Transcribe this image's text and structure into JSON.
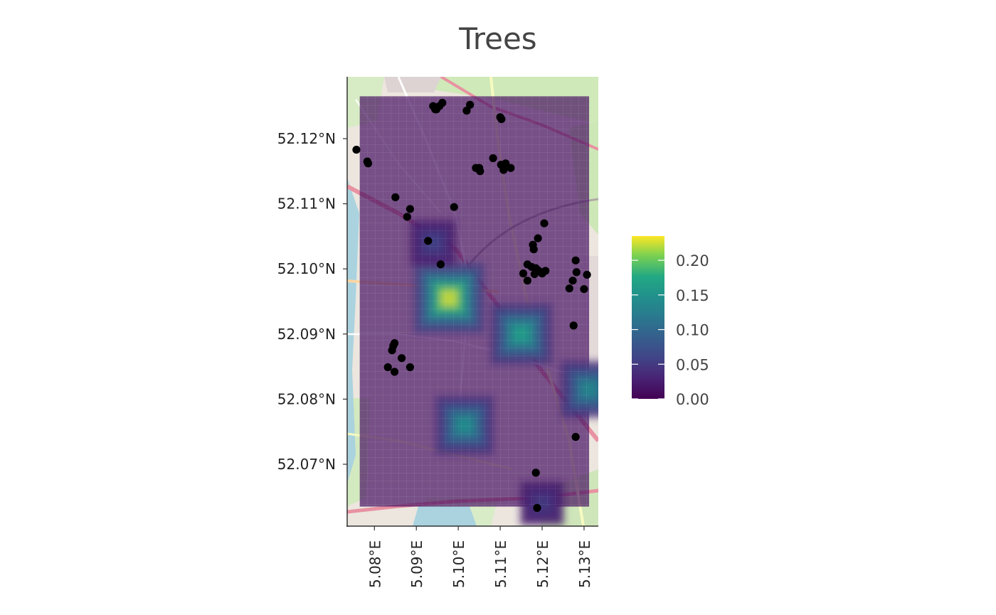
{
  "title": "Trees",
  "map": {
    "lon_range": [
      5.0735,
      5.1334
    ],
    "lat_range": [
      52.0605,
      52.1295
    ],
    "grid_extent": {
      "lon": [
        5.0765,
        5.1312
      ],
      "lat": [
        52.0635,
        52.1265
      ]
    },
    "grid_opacity": 0.7,
    "x_ticks": [
      5.08,
      5.09,
      5.1,
      5.11,
      5.12,
      5.13
    ],
    "x_tick_labels": [
      "5.08°E",
      "5.09°E",
      "5.10°E",
      "5.11°E",
      "5.12°E",
      "5.13°E"
    ],
    "y_ticks": [
      52.12,
      52.11,
      52.1,
      52.09,
      52.08,
      52.07
    ],
    "y_tick_labels": [
      "52.12°N",
      "52.11°N",
      "52.10°N",
      "52.09°N",
      "52.08°N",
      "52.07°N"
    ]
  },
  "legend": {
    "colormap": "viridis",
    "range": [
      0.0,
      0.235
    ],
    "ticks": [
      0.2,
      0.15,
      0.1,
      0.05,
      0.0
    ],
    "tick_labels": [
      "0.20",
      "0.15",
      "0.10",
      "0.05",
      "0.00"
    ]
  },
  "chart_data": {
    "type": "heatmap",
    "title": "Trees",
    "xlabel": "",
    "ylabel": "",
    "fill_range": [
      0.0,
      0.235
    ],
    "hotspots": [
      {
        "lon": 5.0978,
        "lat": 52.0955,
        "value": 0.23
      },
      {
        "lon": 5.115,
        "lat": 52.09,
        "value": 0.17
      },
      {
        "lon": 5.1015,
        "lat": 52.076,
        "value": 0.15
      },
      {
        "lon": 5.1312,
        "lat": 52.0815,
        "value": 0.14
      },
      {
        "lon": 5.094,
        "lat": 52.104,
        "value": 0.06
      },
      {
        "lon": 5.12,
        "lat": 52.064,
        "value": 0.05
      }
    ],
    "points": [
      {
        "lon": 5.0962,
        "lat": 52.1255
      },
      {
        "lon": 5.0955,
        "lat": 52.125
      },
      {
        "lon": 5.095,
        "lat": 52.1248
      },
      {
        "lon": 5.0945,
        "lat": 52.1245
      },
      {
        "lon": 5.094,
        "lat": 52.125
      },
      {
        "lon": 5.0948,
        "lat": 52.1245
      },
      {
        "lon": 5.1028,
        "lat": 52.1252
      },
      {
        "lon": 5.102,
        "lat": 52.1243
      },
      {
        "lon": 5.11,
        "lat": 52.1233
      },
      {
        "lon": 5.1103,
        "lat": 52.123
      },
      {
        "lon": 5.0757,
        "lat": 52.1183
      },
      {
        "lon": 5.0783,
        "lat": 52.1165
      },
      {
        "lon": 5.0785,
        "lat": 52.1162
      },
      {
        "lon": 5.1083,
        "lat": 52.117
      },
      {
        "lon": 5.105,
        "lat": 52.1155
      },
      {
        "lon": 5.1042,
        "lat": 52.1155
      },
      {
        "lon": 5.1052,
        "lat": 52.115
      },
      {
        "lon": 5.1102,
        "lat": 52.116
      },
      {
        "lon": 5.1113,
        "lat": 52.1162
      },
      {
        "lon": 5.1108,
        "lat": 52.1152
      },
      {
        "lon": 5.1125,
        "lat": 52.1155
      },
      {
        "lon": 5.085,
        "lat": 52.111
      },
      {
        "lon": 5.0885,
        "lat": 52.1092
      },
      {
        "lon": 5.0878,
        "lat": 52.108
      },
      {
        "lon": 5.099,
        "lat": 52.1095
      },
      {
        "lon": 5.1205,
        "lat": 52.107
      },
      {
        "lon": 5.119,
        "lat": 52.1047
      },
      {
        "lon": 5.1178,
        "lat": 52.1037
      },
      {
        "lon": 5.118,
        "lat": 52.103
      },
      {
        "lon": 5.0928,
        "lat": 52.1043
      },
      {
        "lon": 5.0958,
        "lat": 52.1007
      },
      {
        "lon": 5.1165,
        "lat": 52.1007
      },
      {
        "lon": 5.1175,
        "lat": 52.1003
      },
      {
        "lon": 5.1185,
        "lat": 52.1001
      },
      {
        "lon": 5.119,
        "lat": 52.0998
      },
      {
        "lon": 5.12,
        "lat": 52.0995
      },
      {
        "lon": 5.1208,
        "lat": 52.0997
      },
      {
        "lon": 5.1155,
        "lat": 52.0993
      },
      {
        "lon": 5.1182,
        "lat": 52.0992
      },
      {
        "lon": 5.12,
        "lat": 52.0993
      },
      {
        "lon": 5.1165,
        "lat": 52.0982
      },
      {
        "lon": 5.128,
        "lat": 52.1013
      },
      {
        "lon": 5.1282,
        "lat": 52.0995
      },
      {
        "lon": 5.1307,
        "lat": 52.0991
      },
      {
        "lon": 5.1273,
        "lat": 52.0982
      },
      {
        "lon": 5.1265,
        "lat": 52.097
      },
      {
        "lon": 5.13,
        "lat": 52.0969
      },
      {
        "lon": 5.1275,
        "lat": 52.0913
      },
      {
        "lon": 5.0848,
        "lat": 52.0886
      },
      {
        "lon": 5.0845,
        "lat": 52.0882
      },
      {
        "lon": 5.0842,
        "lat": 52.0875
      },
      {
        "lon": 5.0865,
        "lat": 52.0863
      },
      {
        "lon": 5.0832,
        "lat": 52.0849
      },
      {
        "lon": 5.0885,
        "lat": 52.0849
      },
      {
        "lon": 5.0848,
        "lat": 52.0842
      },
      {
        "lon": 5.128,
        "lat": 52.0742
      },
      {
        "lon": 5.1185,
        "lat": 52.0687
      },
      {
        "lon": 5.1188,
        "lat": 52.0633
      }
    ]
  }
}
